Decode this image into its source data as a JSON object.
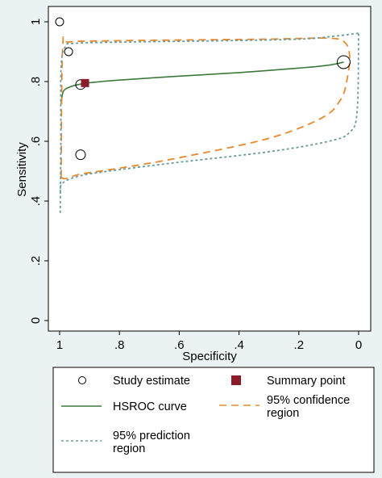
{
  "chart_data": {
    "type": "scatter",
    "xlabel": "Specificity",
    "ylabel": "Sensitivity",
    "xlim": [
      1.0,
      0.0
    ],
    "ylim": [
      0.0,
      1.0
    ],
    "x_reversed": true,
    "x_ticks": [
      1,
      0.8,
      0.6,
      0.4,
      0.2,
      0
    ],
    "x_tick_labels": [
      "1",
      ".8",
      ".6",
      ".4",
      ".2",
      "0"
    ],
    "y_ticks": [
      0,
      0.2,
      0.4,
      0.6,
      0.8,
      1
    ],
    "y_tick_labels": [
      "0",
      ".2",
      ".4",
      ".6",
      ".8",
      "1"
    ],
    "grid": false,
    "legend_position": "bottom",
    "series": [
      {
        "name": "Study estimate",
        "kind": "points",
        "color": "#000000",
        "points": [
          {
            "x": 1.0,
            "y": 1.0,
            "r": 5
          },
          {
            "x": 0.97,
            "y": 0.9,
            "r": 5
          },
          {
            "x": 0.93,
            "y": 0.79,
            "r": 6
          },
          {
            "x": 0.93,
            "y": 0.555,
            "r": 6
          },
          {
            "x": 0.05,
            "y": 0.865,
            "r": 8
          }
        ]
      },
      {
        "name": "Summary point",
        "kind": "square",
        "color": "#8b1c2a",
        "points": [
          {
            "x": 0.915,
            "y": 0.795
          }
        ]
      },
      {
        "name": "HSROC curve",
        "kind": "line",
        "color": "#3b7a3b",
        "dash": "solid",
        "points": [
          {
            "x": 0.995,
            "y": 0.725
          },
          {
            "x": 0.99,
            "y": 0.76
          },
          {
            "x": 0.98,
            "y": 0.775
          },
          {
            "x": 0.95,
            "y": 0.787
          },
          {
            "x": 0.9,
            "y": 0.796
          },
          {
            "x": 0.8,
            "y": 0.805
          },
          {
            "x": 0.6,
            "y": 0.818
          },
          {
            "x": 0.4,
            "y": 0.83
          },
          {
            "x": 0.2,
            "y": 0.845
          },
          {
            "x": 0.1,
            "y": 0.855
          },
          {
            "x": 0.05,
            "y": 0.865
          }
        ]
      },
      {
        "name": "95% confidence region",
        "kind": "line",
        "color": "#e8892c",
        "dash": "dashed",
        "closed": true,
        "points": [
          {
            "x": 0.995,
            "y": 0.48
          },
          {
            "x": 0.99,
            "y": 0.91
          },
          {
            "x": 0.97,
            "y": 0.932
          },
          {
            "x": 0.85,
            "y": 0.936
          },
          {
            "x": 0.6,
            "y": 0.939
          },
          {
            "x": 0.3,
            "y": 0.942
          },
          {
            "x": 0.1,
            "y": 0.945
          },
          {
            "x": 0.045,
            "y": 0.93
          },
          {
            "x": 0.03,
            "y": 0.88
          },
          {
            "x": 0.04,
            "y": 0.8
          },
          {
            "x": 0.06,
            "y": 0.74
          },
          {
            "x": 0.12,
            "y": 0.68
          },
          {
            "x": 0.3,
            "y": 0.61
          },
          {
            "x": 0.6,
            "y": 0.545
          },
          {
            "x": 0.8,
            "y": 0.51
          },
          {
            "x": 0.93,
            "y": 0.49
          },
          {
            "x": 0.98,
            "y": 0.475
          },
          {
            "x": 0.995,
            "y": 0.48
          }
        ]
      },
      {
        "name": "95% prediction region",
        "kind": "line",
        "color": "#6a9a9a",
        "dash": "dotted",
        "points": [
          {
            "x": 0.998,
            "y": 0.36
          },
          {
            "x": 0.996,
            "y": 0.6
          },
          {
            "x": 0.995,
            "y": 0.85
          },
          {
            "x": 0.98,
            "y": 0.918
          },
          {
            "x": 0.95,
            "y": 0.928
          },
          {
            "x": 0.8,
            "y": 0.932
          },
          {
            "x": 0.5,
            "y": 0.936
          },
          {
            "x": 0.2,
            "y": 0.942
          },
          {
            "x": 0.08,
            "y": 0.952
          },
          {
            "x": 0.0,
            "y": 0.962
          }
        ]
      },
      {
        "name": "95% prediction region (lower)",
        "kind": "line",
        "color": "#6a9a9a",
        "dash": "dotted",
        "points": [
          {
            "x": 0.998,
            "y": 0.43
          },
          {
            "x": 0.99,
            "y": 0.46
          },
          {
            "x": 0.93,
            "y": 0.485
          },
          {
            "x": 0.8,
            "y": 0.505
          },
          {
            "x": 0.6,
            "y": 0.53
          },
          {
            "x": 0.3,
            "y": 0.565
          },
          {
            "x": 0.1,
            "y": 0.6
          },
          {
            "x": 0.03,
            "y": 0.63
          },
          {
            "x": 0.005,
            "y": 0.7
          },
          {
            "x": 0.0,
            "y": 0.96
          }
        ]
      }
    ]
  },
  "legend": {
    "items": [
      {
        "label_lines": [
          "Study estimate"
        ],
        "symbol": "circle",
        "color": "#000000"
      },
      {
        "label_lines": [
          "Summary point"
        ],
        "symbol": "square",
        "color": "#8b1c2a"
      },
      {
        "label_lines": [
          "HSROC curve"
        ],
        "symbol": "solid",
        "color": "#3b7a3b"
      },
      {
        "label_lines": [
          "95% confidence",
          "region"
        ],
        "symbol": "dashed",
        "color": "#e8892c"
      },
      {
        "label_lines": [
          "95% prediction",
          "region"
        ],
        "symbol": "dotted",
        "color": "#6a9a9a"
      }
    ]
  }
}
